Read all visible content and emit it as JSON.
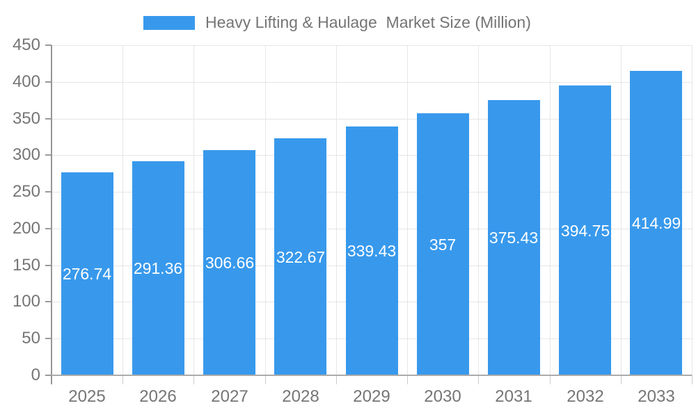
{
  "legend": {
    "label": "Heavy Lifting & Haulage  Market Size (Million)",
    "swatch_color": "#3899EC"
  },
  "chart_data": {
    "type": "bar",
    "title": "Heavy Lifting & Haulage  Market Size (Million)",
    "categories": [
      "2025",
      "2026",
      "2027",
      "2028",
      "2029",
      "2030",
      "2031",
      "2032",
      "2033"
    ],
    "values": [
      276.74,
      291.36,
      306.66,
      322.67,
      339.43,
      357,
      375.43,
      394.75,
      414.99
    ],
    "value_labels": [
      "276.74",
      "291.36",
      "306.66",
      "322.67",
      "339.43",
      "357",
      "375.43",
      "394.75",
      "414.99"
    ],
    "xlabel": "",
    "ylabel": "",
    "ylim": [
      0,
      450
    ],
    "ytick_step": 50,
    "yticks": [
      0,
      50,
      100,
      150,
      200,
      250,
      300,
      350,
      400,
      450
    ],
    "grid": true,
    "legend_position": "top",
    "bar_color": "#3899EC",
    "value_label_color": "#FFFFFF",
    "axis_text_color": "#757575",
    "gridline_color": "#E6E6E6"
  }
}
